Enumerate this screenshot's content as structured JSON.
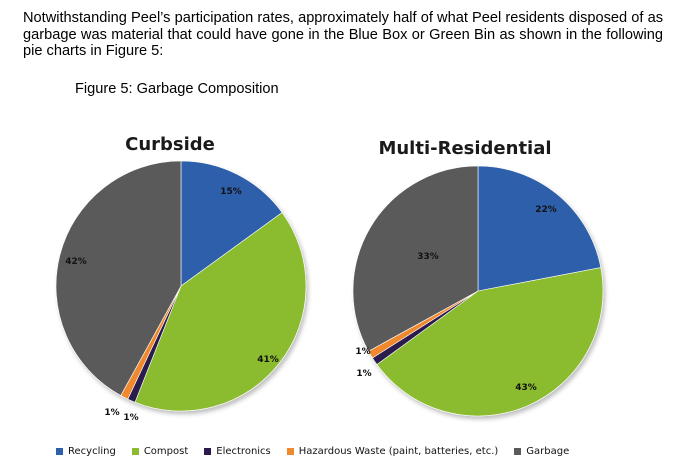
{
  "paragraph": "Notwithstanding Peel’s participation rates, approximately half of what Peel residents disposed of as garbage was material that could have gone in the Blue Box or Green Bin as shown in the following pie charts in Figure 5:",
  "figure_caption": "Figure 5: Garbage Composition",
  "legend": [
    {
      "label": "Recycling",
      "color": "#2e5fab"
    },
    {
      "label": "Compost",
      "color": "#8bbb2e"
    },
    {
      "label": "Electronics",
      "color": "#2a1a4e"
    },
    {
      "label": "Hazardous Waste (paint, batteries, etc.)",
      "color": "#f0892e"
    },
    {
      "label": "Garbage",
      "color": "#5a5a5a"
    }
  ],
  "chart_data": [
    {
      "type": "pie",
      "title": "Curbside",
      "categories": [
        "Recycling",
        "Compost",
        "Electronics",
        "Hazardous Waste (paint, batteries, etc.)",
        "Garbage"
      ],
      "values": [
        15,
        41,
        1,
        1,
        42
      ],
      "labels": [
        "15%",
        "41%",
        "1%",
        "1%",
        "42%"
      ]
    },
    {
      "type": "pie",
      "title": "Multi-Residential",
      "categories": [
        "Recycling",
        "Compost",
        "Electronics",
        "Hazardous Waste (paint, batteries, etc.)",
        "Garbage"
      ],
      "values": [
        22,
        43,
        1,
        1,
        33
      ],
      "labels": [
        "22%",
        "43%",
        "1%",
        "1%",
        "33%"
      ]
    }
  ]
}
